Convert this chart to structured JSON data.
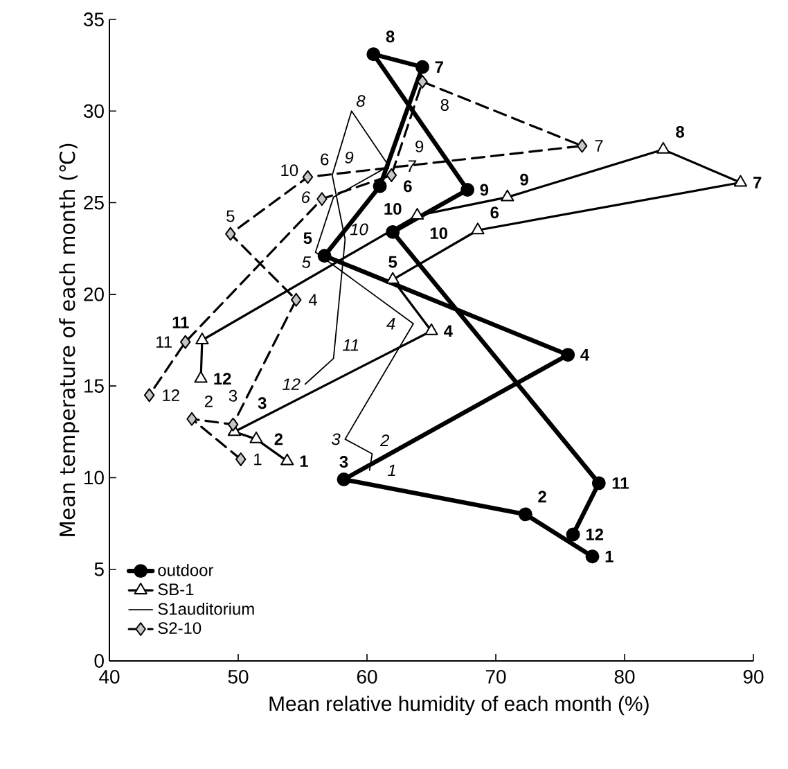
{
  "chart_data": {
    "type": "line",
    "xlabel": "Mean relative humidity of each month (%)",
    "ylabel": "Mean temperature of each month (℃)",
    "xlim": [
      40,
      90
    ],
    "xticks": [
      40,
      50,
      60,
      70,
      80,
      90
    ],
    "ylim": [
      0,
      35
    ],
    "yticks": [
      0,
      5,
      10,
      15,
      20,
      25,
      30,
      35
    ],
    "grid": false,
    "legend": "bottom left",
    "series": [
      {
        "name": "outdoor",
        "color": "#000000",
        "marker": "circle",
        "line_style": "solid",
        "x": [
          77.5,
          72.3,
          58.2,
          75.6,
          56.7,
          61.0,
          64.3,
          60.5,
          67.8,
          62.0,
          78.0,
          76.0
        ],
        "values": [
          5.7,
          8.0,
          9.9,
          16.7,
          22.1,
          25.9,
          32.4,
          33.1,
          25.7,
          23.4,
          9.7,
          6.9
        ]
      },
      {
        "name": "SB-1",
        "color": "#000000",
        "marker": "triangle",
        "line_style": "solid",
        "x": [
          53.8,
          51.4,
          49.7,
          65.0,
          62.0,
          68.6,
          89.0,
          83.0,
          70.9,
          63.9,
          47.2,
          47.1
        ],
        "values": [
          10.9,
          12.1,
          12.5,
          18.0,
          20.8,
          23.5,
          26.1,
          27.9,
          25.3,
          24.3,
          17.5,
          15.4
        ]
      },
      {
        "name": "S1auditorium",
        "color": "#000000",
        "marker": "none",
        "line_style": "solid",
        "x": [
          60.2,
          60.4,
          58.3,
          63.6,
          56.0,
          57.4,
          61.7,
          58.8,
          57.3,
          58.3,
          57.4,
          55.2
        ],
        "values": [
          10.4,
          11.3,
          12.1,
          18.4,
          22.3,
          25.3,
          27.0,
          30.0,
          26.5,
          23.0,
          16.5,
          15.1
        ]
      },
      {
        "name": "S2-10",
        "color": "#000000",
        "marker": "diamond",
        "line_style": "dashed",
        "x": [
          50.2,
          46.4,
          49.6,
          54.5,
          49.4,
          55.4,
          76.7,
          64.3,
          61.9,
          56.5,
          45.9,
          43.1
        ],
        "values": [
          11.0,
          13.2,
          12.9,
          19.7,
          23.3,
          26.4,
          28.1,
          31.6,
          26.5,
          25.2,
          17.4,
          14.5
        ]
      }
    ],
    "annotations": [
      {
        "text": "1",
        "x": 77.5,
        "y": 5.7
      },
      {
        "text": "2",
        "x": 72.3,
        "y": 8.0
      },
      {
        "text": "3",
        "x": 58.2,
        "y": 9.9
      },
      {
        "text": "4",
        "x": 75.6,
        "y": 16.7
      },
      {
        "text": "5",
        "x": 56.7,
        "y": 22.1
      },
      {
        "text": "6",
        "x": 61.0,
        "y": 25.9
      },
      {
        "text": "7",
        "x": 64.3,
        "y": 32.4
      },
      {
        "text": "8",
        "x": 60.5,
        "y": 33.1
      },
      {
        "text": "9",
        "x": 67.8,
        "y": 25.7
      },
      {
        "text": "10",
        "x": 62.0,
        "y": 23.4
      },
      {
        "text": "11",
        "x": 78.0,
        "y": 9.7
      },
      {
        "text": "12",
        "x": 76.0,
        "y": 6.9
      },
      {
        "text": "1",
        "x": 53.8,
        "y": 10.9
      },
      {
        "text": "2",
        "x": 51.4,
        "y": 12.1
      },
      {
        "text": "3",
        "x": 49.7,
        "y": 12.5
      },
      {
        "text": "4",
        "x": 65.0,
        "y": 18.0
      },
      {
        "text": "5",
        "x": 62.0,
        "y": 20.8
      },
      {
        "text": "6",
        "x": 68.6,
        "y": 23.5
      },
      {
        "text": "7",
        "x": 89.0,
        "y": 26.1
      },
      {
        "text": "8",
        "x": 83.0,
        "y": 27.9
      },
      {
        "text": "9",
        "x": 70.9,
        "y": 25.3
      },
      {
        "text": "10",
        "x": 63.9,
        "y": 24.3
      },
      {
        "text": "11",
        "x": 47.2,
        "y": 17.5
      },
      {
        "text": "12",
        "x": 47.1,
        "y": 15.4
      },
      {
        "text": "1",
        "x": 60.2,
        "y": 10.4
      },
      {
        "text": "2",
        "x": 60.4,
        "y": 11.3
      },
      {
        "text": "3",
        "x": 58.3,
        "y": 12.1
      },
      {
        "text": "4",
        "x": 63.6,
        "y": 18.4
      },
      {
        "text": "5",
        "x": 56.0,
        "y": 22.3
      },
      {
        "text": "6",
        "x": 57.4,
        "y": 25.3
      },
      {
        "text": "7",
        "x": 61.7,
        "y": 27.0
      },
      {
        "text": "8",
        "x": 58.8,
        "y": 30.0
      },
      {
        "text": "9",
        "x": 57.3,
        "y": 26.5
      },
      {
        "text": "10",
        "x": 58.3,
        "y": 23.0
      },
      {
        "text": "11",
        "x": 57.4,
        "y": 16.5
      },
      {
        "text": "12",
        "x": 55.2,
        "y": 15.1
      },
      {
        "text": "1",
        "x": 50.2,
        "y": 11.0
      },
      {
        "text": "2",
        "x": 46.4,
        "y": 13.2
      },
      {
        "text": "3",
        "x": 49.6,
        "y": 12.9
      },
      {
        "text": "4",
        "x": 54.5,
        "y": 19.7
      },
      {
        "text": "5",
        "x": 49.4,
        "y": 23.3
      },
      {
        "text": "6",
        "x": 55.4,
        "y": 26.4
      },
      {
        "text": "7",
        "x": 76.7,
        "y": 28.1
      },
      {
        "text": "8",
        "x": 64.3,
        "y": 31.6
      },
      {
        "text": "9",
        "x": 61.9,
        "y": 26.5
      },
      {
        "text": "10",
        "x": 56.5,
        "y": 25.2
      },
      {
        "text": "11",
        "x": 45.9,
        "y": 17.4
      },
      {
        "text": "12",
        "x": 43.1,
        "y": 14.5
      }
    ]
  }
}
